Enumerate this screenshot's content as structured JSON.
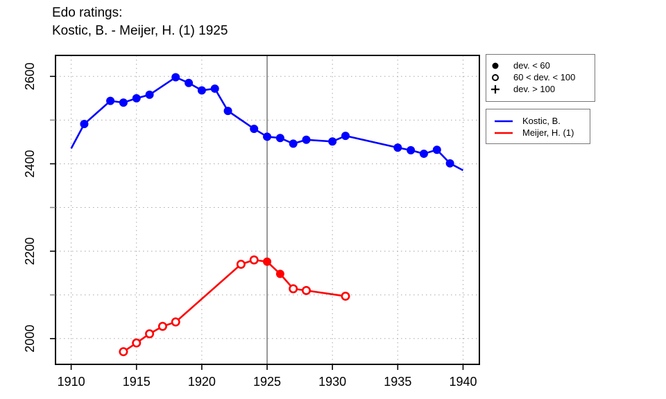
{
  "title": {
    "line1": "Edo ratings:",
    "line2": "Kostic, B. - Meijer, H. (1) 1925"
  },
  "chart_data": {
    "type": "line",
    "title": "Edo ratings: Kostic, B. - Meijer, H. (1) 1925",
    "xlabel": "",
    "ylabel": "",
    "xlim": [
      1908.8,
      1941.25
    ],
    "ylim": [
      1941,
      2648
    ],
    "x_ticks": [
      1910,
      1915,
      1920,
      1925,
      1930,
      1935,
      1940
    ],
    "y_ticks_major": [
      2000,
      2200,
      2400,
      2600
    ],
    "y_ticks_minor": [
      2100,
      2300,
      2500
    ],
    "grid": true,
    "legend_position": "outside-top-right",
    "reference_line_year": 1925,
    "colors": {
      "grid": "#A8A8A8",
      "reference_line": "#7F7F7F",
      "frame": "#000000",
      "axis_text": "#000000"
    },
    "marker_legend": [
      {
        "symbol": "filled-circle",
        "label": "dev. < 60"
      },
      {
        "symbol": "open-circle",
        "label": "60 < dev. < 100"
      },
      {
        "symbol": "plus",
        "label": "dev. > 100"
      }
    ],
    "series": [
      {
        "name": "Kostic, B.",
        "color": "#0000FF",
        "points": [
          {
            "year": 1910,
            "rating": 2435,
            "marker": "none"
          },
          {
            "year": 1911,
            "rating": 2491,
            "marker": "filled"
          },
          {
            "year": 1913,
            "rating": 2544,
            "marker": "filled"
          },
          {
            "year": 1914,
            "rating": 2540,
            "marker": "filled"
          },
          {
            "year": 1915,
            "rating": 2550,
            "marker": "filled"
          },
          {
            "year": 1916,
            "rating": 2558,
            "marker": "filled"
          },
          {
            "year": 1918,
            "rating": 2598,
            "marker": "filled"
          },
          {
            "year": 1919,
            "rating": 2585,
            "marker": "filled"
          },
          {
            "year": 1920,
            "rating": 2568,
            "marker": "filled"
          },
          {
            "year": 1921,
            "rating": 2572,
            "marker": "filled"
          },
          {
            "year": 1922,
            "rating": 2521,
            "marker": "filled"
          },
          {
            "year": 1924,
            "rating": 2480,
            "marker": "filled"
          },
          {
            "year": 1925,
            "rating": 2462,
            "marker": "filled"
          },
          {
            "year": 1926,
            "rating": 2459,
            "marker": "filled"
          },
          {
            "year": 1927,
            "rating": 2446,
            "marker": "filled"
          },
          {
            "year": 1928,
            "rating": 2455,
            "marker": "filled"
          },
          {
            "year": 1930,
            "rating": 2451,
            "marker": "filled"
          },
          {
            "year": 1931,
            "rating": 2464,
            "marker": "filled"
          },
          {
            "year": 1935,
            "rating": 2437,
            "marker": "filled"
          },
          {
            "year": 1936,
            "rating": 2431,
            "marker": "filled"
          },
          {
            "year": 1937,
            "rating": 2423,
            "marker": "filled"
          },
          {
            "year": 1938,
            "rating": 2432,
            "marker": "filled"
          },
          {
            "year": 1939,
            "rating": 2401,
            "marker": "filled"
          },
          {
            "year": 1940,
            "rating": 2385,
            "marker": "none"
          }
        ]
      },
      {
        "name": "Meijer, H. (1)",
        "color": "#FF0000",
        "points": [
          {
            "year": 1914,
            "rating": 1970,
            "marker": "open"
          },
          {
            "year": 1915,
            "rating": 1990,
            "marker": "open"
          },
          {
            "year": 1916,
            "rating": 2011,
            "marker": "open"
          },
          {
            "year": 1917,
            "rating": 2028,
            "marker": "open"
          },
          {
            "year": 1918,
            "rating": 2038,
            "marker": "open"
          },
          {
            "year": 1923,
            "rating": 2170,
            "marker": "open"
          },
          {
            "year": 1924,
            "rating": 2180,
            "marker": "open"
          },
          {
            "year": 1925,
            "rating": 2176,
            "marker": "filled"
          },
          {
            "year": 1926,
            "rating": 2148,
            "marker": "filled"
          },
          {
            "year": 1927,
            "rating": 2114,
            "marker": "open"
          },
          {
            "year": 1928,
            "rating": 2110,
            "marker": "open"
          },
          {
            "year": 1931,
            "rating": 2097,
            "marker": "open"
          }
        ]
      }
    ]
  }
}
